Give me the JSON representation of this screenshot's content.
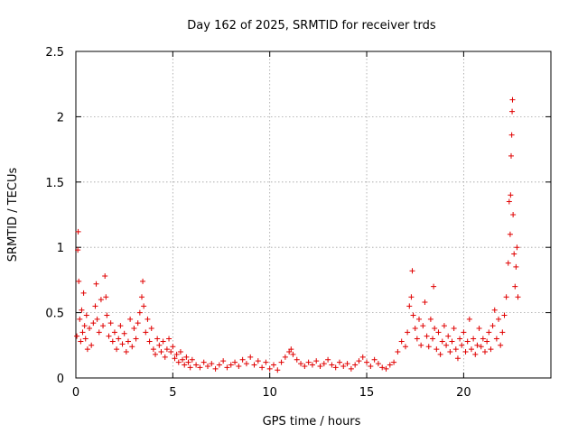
{
  "chart_data": {
    "type": "scatter",
    "title": "Day 162 of 2025, SRMTID for receiver trds",
    "xlabel": "GPS time / hours",
    "ylabel": "SRMTID / TECUs",
    "xlim": [
      0,
      24.5
    ],
    "ylim": [
      0,
      2.5
    ],
    "xticks": [
      0,
      5,
      10,
      15,
      20
    ],
    "xtick_labels": [
      "0",
      "5",
      "10",
      "15",
      "20"
    ],
    "yticks": [
      0,
      0.5,
      1,
      1.5,
      2,
      2.5
    ],
    "ytick_labels": [
      "0",
      "0.5",
      "1",
      "1.5",
      "2",
      "2.5"
    ],
    "grid": true,
    "marker": "+",
    "series": [
      {
        "name": "SRMTID",
        "color": "#e00000",
        "points": [
          [
            0.05,
            0.32
          ],
          [
            0.1,
            0.98
          ],
          [
            0.12,
            1.12
          ],
          [
            0.15,
            0.74
          ],
          [
            0.2,
            0.45
          ],
          [
            0.25,
            0.28
          ],
          [
            0.3,
            0.52
          ],
          [
            0.35,
            0.35
          ],
          [
            0.4,
            0.65
          ],
          [
            0.45,
            0.4
          ],
          [
            0.5,
            0.3
          ],
          [
            0.55,
            0.48
          ],
          [
            0.6,
            0.22
          ],
          [
            0.7,
            0.38
          ],
          [
            0.8,
            0.25
          ],
          [
            0.9,
            0.42
          ],
          [
            1.0,
            0.55
          ],
          [
            1.05,
            0.72
          ],
          [
            1.1,
            0.45
          ],
          [
            1.2,
            0.35
          ],
          [
            1.3,
            0.6
          ],
          [
            1.4,
            0.4
          ],
          [
            1.5,
            0.78
          ],
          [
            1.55,
            0.62
          ],
          [
            1.6,
            0.48
          ],
          [
            1.7,
            0.32
          ],
          [
            1.8,
            0.42
          ],
          [
            1.9,
            0.28
          ],
          [
            2.0,
            0.35
          ],
          [
            2.1,
            0.22
          ],
          [
            2.2,
            0.3
          ],
          [
            2.3,
            0.4
          ],
          [
            2.4,
            0.26
          ],
          [
            2.5,
            0.34
          ],
          [
            2.6,
            0.2
          ],
          [
            2.7,
            0.28
          ],
          [
            2.8,
            0.45
          ],
          [
            2.9,
            0.24
          ],
          [
            3.0,
            0.38
          ],
          [
            3.1,
            0.3
          ],
          [
            3.2,
            0.42
          ],
          [
            3.3,
            0.5
          ],
          [
            3.4,
            0.62
          ],
          [
            3.45,
            0.74
          ],
          [
            3.5,
            0.55
          ],
          [
            3.6,
            0.35
          ],
          [
            3.7,
            0.45
          ],
          [
            3.8,
            0.28
          ],
          [
            3.9,
            0.38
          ],
          [
            4.0,
            0.22
          ],
          [
            4.1,
            0.18
          ],
          [
            4.2,
            0.3
          ],
          [
            4.3,
            0.25
          ],
          [
            4.4,
            0.2
          ],
          [
            4.5,
            0.28
          ],
          [
            4.6,
            0.16
          ],
          [
            4.7,
            0.22
          ],
          [
            4.8,
            0.3
          ],
          [
            4.9,
            0.2
          ],
          [
            5.0,
            0.24
          ],
          [
            5.1,
            0.15
          ],
          [
            5.2,
            0.18
          ],
          [
            5.3,
            0.12
          ],
          [
            5.4,
            0.2
          ],
          [
            5.5,
            0.14
          ],
          [
            5.6,
            0.1
          ],
          [
            5.7,
            0.16
          ],
          [
            5.8,
            0.12
          ],
          [
            5.9,
            0.08
          ],
          [
            6.0,
            0.14
          ],
          [
            6.2,
            0.1
          ],
          [
            6.4,
            0.08
          ],
          [
            6.6,
            0.12
          ],
          [
            6.8,
            0.09
          ],
          [
            7.0,
            0.11
          ],
          [
            7.2,
            0.07
          ],
          [
            7.4,
            0.1
          ],
          [
            7.6,
            0.13
          ],
          [
            7.8,
            0.08
          ],
          [
            8.0,
            0.1
          ],
          [
            8.2,
            0.12
          ],
          [
            8.4,
            0.09
          ],
          [
            8.6,
            0.14
          ],
          [
            8.8,
            0.11
          ],
          [
            9.0,
            0.16
          ],
          [
            9.2,
            0.1
          ],
          [
            9.4,
            0.13
          ],
          [
            9.6,
            0.08
          ],
          [
            9.8,
            0.12
          ],
          [
            10.0,
            0.07
          ],
          [
            10.2,
            0.1
          ],
          [
            10.4,
            0.06
          ],
          [
            10.6,
            0.12
          ],
          [
            10.8,
            0.16
          ],
          [
            11.0,
            0.2
          ],
          [
            11.1,
            0.22
          ],
          [
            11.2,
            0.18
          ],
          [
            11.4,
            0.14
          ],
          [
            11.6,
            0.11
          ],
          [
            11.8,
            0.09
          ],
          [
            12.0,
            0.12
          ],
          [
            12.2,
            0.1
          ],
          [
            12.4,
            0.13
          ],
          [
            12.6,
            0.09
          ],
          [
            12.8,
            0.11
          ],
          [
            13.0,
            0.14
          ],
          [
            13.2,
            0.1
          ],
          [
            13.4,
            0.08
          ],
          [
            13.6,
            0.12
          ],
          [
            13.8,
            0.09
          ],
          [
            14.0,
            0.11
          ],
          [
            14.2,
            0.07
          ],
          [
            14.4,
            0.1
          ],
          [
            14.6,
            0.13
          ],
          [
            14.8,
            0.16
          ],
          [
            15.0,
            0.12
          ],
          [
            15.2,
            0.09
          ],
          [
            15.4,
            0.14
          ],
          [
            15.6,
            0.11
          ],
          [
            15.8,
            0.08
          ],
          [
            16.0,
            0.07
          ],
          [
            16.2,
            0.1
          ],
          [
            16.4,
            0.12
          ],
          [
            16.6,
            0.2
          ],
          [
            16.8,
            0.28
          ],
          [
            17.0,
            0.24
          ],
          [
            17.1,
            0.35
          ],
          [
            17.2,
            0.55
          ],
          [
            17.3,
            0.62
          ],
          [
            17.35,
            0.82
          ],
          [
            17.4,
            0.48
          ],
          [
            17.5,
            0.38
          ],
          [
            17.6,
            0.3
          ],
          [
            17.7,
            0.45
          ],
          [
            17.8,
            0.25
          ],
          [
            17.9,
            0.4
          ],
          [
            18.0,
            0.58
          ],
          [
            18.1,
            0.32
          ],
          [
            18.2,
            0.24
          ],
          [
            18.3,
            0.45
          ],
          [
            18.4,
            0.3
          ],
          [
            18.45,
            0.7
          ],
          [
            18.5,
            0.38
          ],
          [
            18.6,
            0.22
          ],
          [
            18.7,
            0.35
          ],
          [
            18.8,
            0.18
          ],
          [
            18.9,
            0.28
          ],
          [
            19.0,
            0.4
          ],
          [
            19.1,
            0.25
          ],
          [
            19.2,
            0.32
          ],
          [
            19.3,
            0.2
          ],
          [
            19.4,
            0.28
          ],
          [
            19.5,
            0.38
          ],
          [
            19.6,
            0.22
          ],
          [
            19.7,
            0.15
          ],
          [
            19.8,
            0.3
          ],
          [
            19.9,
            0.25
          ],
          [
            20.0,
            0.35
          ],
          [
            20.1,
            0.2
          ],
          [
            20.2,
            0.28
          ],
          [
            20.3,
            0.45
          ],
          [
            20.4,
            0.22
          ],
          [
            20.5,
            0.3
          ],
          [
            20.6,
            0.18
          ],
          [
            20.7,
            0.25
          ],
          [
            20.8,
            0.38
          ],
          [
            20.9,
            0.24
          ],
          [
            21.0,
            0.3
          ],
          [
            21.1,
            0.2
          ],
          [
            21.2,
            0.28
          ],
          [
            21.3,
            0.35
          ],
          [
            21.4,
            0.22
          ],
          [
            21.5,
            0.4
          ],
          [
            21.6,
            0.52
          ],
          [
            21.7,
            0.3
          ],
          [
            21.8,
            0.45
          ],
          [
            21.9,
            0.25
          ],
          [
            22.0,
            0.35
          ],
          [
            22.1,
            0.48
          ],
          [
            22.2,
            0.62
          ],
          [
            22.3,
            0.88
          ],
          [
            22.35,
            1.35
          ],
          [
            22.4,
            1.1
          ],
          [
            22.42,
            1.4
          ],
          [
            22.45,
            1.7
          ],
          [
            22.48,
            1.86
          ],
          [
            22.5,
            2.04
          ],
          [
            22.52,
            2.13
          ],
          [
            22.55,
            1.25
          ],
          [
            22.6,
            0.95
          ],
          [
            22.65,
            0.7
          ],
          [
            22.7,
            0.85
          ],
          [
            22.75,
            1.0
          ],
          [
            22.8,
            0.62
          ]
        ]
      }
    ]
  }
}
